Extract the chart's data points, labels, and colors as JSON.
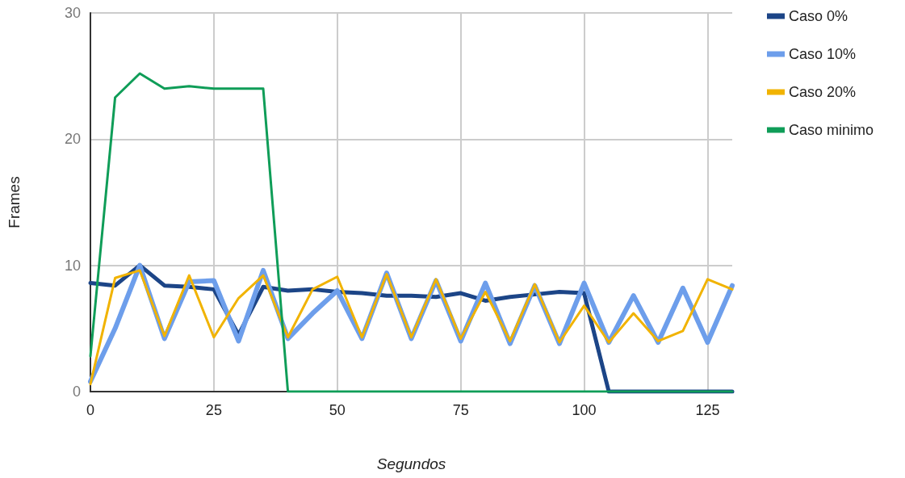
{
  "chart_data": {
    "type": "line",
    "xlabel": "Segundos",
    "ylabel": "Frames",
    "x": [
      0,
      5,
      10,
      15,
      20,
      25,
      30,
      35,
      40,
      45,
      50,
      55,
      60,
      65,
      70,
      75,
      80,
      85,
      90,
      95,
      100,
      105,
      110,
      115,
      120,
      125,
      130
    ],
    "series": [
      {
        "name": "Caso 0%",
        "color": "#1c4587",
        "values": [
          8.6,
          8.4,
          10.0,
          8.4,
          8.3,
          8.1,
          4.5,
          8.3,
          8.0,
          8.1,
          7.9,
          7.8,
          7.6,
          7.6,
          7.5,
          7.8,
          7.2,
          7.5,
          7.7,
          7.9,
          7.8,
          0,
          0,
          0,
          0,
          0,
          0
        ]
      },
      {
        "name": "Caso 10%",
        "color": "#6d9eeb",
        "values": [
          0.8,
          5.0,
          10.0,
          4.2,
          8.7,
          8.8,
          4.0,
          9.6,
          4.2,
          6.2,
          8.0,
          4.2,
          9.4,
          4.2,
          8.8,
          4.0,
          8.6,
          3.8,
          8.4,
          3.8,
          8.6,
          3.9,
          7.6,
          3.9,
          8.2,
          3.9,
          8.4
        ]
      },
      {
        "name": "Caso 20%",
        "color": "#f1b300",
        "values": [
          0.6,
          9.0,
          9.6,
          4.4,
          9.2,
          4.3,
          7.4,
          9.2,
          4.3,
          8.1,
          9.1,
          4.3,
          9.3,
          4.3,
          8.9,
          4.2,
          7.9,
          4.0,
          8.5,
          3.9,
          6.8,
          3.9,
          6.2,
          4.0,
          4.8,
          8.9,
          8.1
        ]
      },
      {
        "name": "Caso minimo",
        "color": "#0f9d58",
        "values": [
          2.8,
          23.3,
          25.2,
          24.0,
          24.2,
          24.0,
          24.0,
          24.0,
          0,
          0,
          0,
          0,
          0,
          0,
          0,
          0,
          0,
          0,
          0,
          0,
          0,
          0,
          0,
          0,
          0,
          0,
          0
        ]
      }
    ],
    "xlim": [
      0,
      130
    ],
    "xticks": [
      0,
      25,
      50,
      75,
      100,
      125
    ],
    "ylim": [
      0,
      30
    ],
    "yticks": [
      0,
      10,
      20,
      30
    ],
    "grid": true,
    "legend": "right",
    "marker": "none",
    "line_style": "solid"
  }
}
